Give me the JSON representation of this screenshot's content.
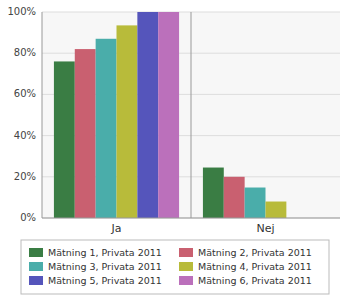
{
  "chart_data": {
    "type": "bar",
    "categories": [
      "Ja",
      "Nej"
    ],
    "series": [
      {
        "name": "Mätning 1, Privata 2011",
        "color": "#3a7d44",
        "values": [
          0.76,
          0.245
        ]
      },
      {
        "name": "Mätning 2, Privata 2011",
        "color": "#c96070",
        "values": [
          0.82,
          0.2
        ]
      },
      {
        "name": "Mätning 3, Privata 2011",
        "color": "#4aadaa",
        "values": [
          0.87,
          0.148
        ]
      },
      {
        "name": "Mätning 4, Privata 2011",
        "color": "#b8bb3a",
        "values": [
          0.935,
          0.08
        ]
      },
      {
        "name": "Mätning 5, Privata 2011",
        "color": "#5555bb",
        "values": [
          1.0,
          0.0
        ]
      },
      {
        "name": "Mätning 6, Privata 2011",
        "color": "#bb70bb",
        "values": [
          1.0,
          0.0
        ]
      }
    ],
    "ylim": [
      0,
      1.0
    ],
    "yticks": [
      {
        "value": 0.0,
        "label": "0%"
      },
      {
        "value": 0.2,
        "label": "20%"
      },
      {
        "value": 0.4,
        "label": "40%"
      },
      {
        "value": 0.6,
        "label": "60%"
      },
      {
        "value": 0.8,
        "label": "80%"
      },
      {
        "value": 1.0,
        "label": "100%"
      }
    ],
    "grid": true,
    "legend": "bottom"
  }
}
